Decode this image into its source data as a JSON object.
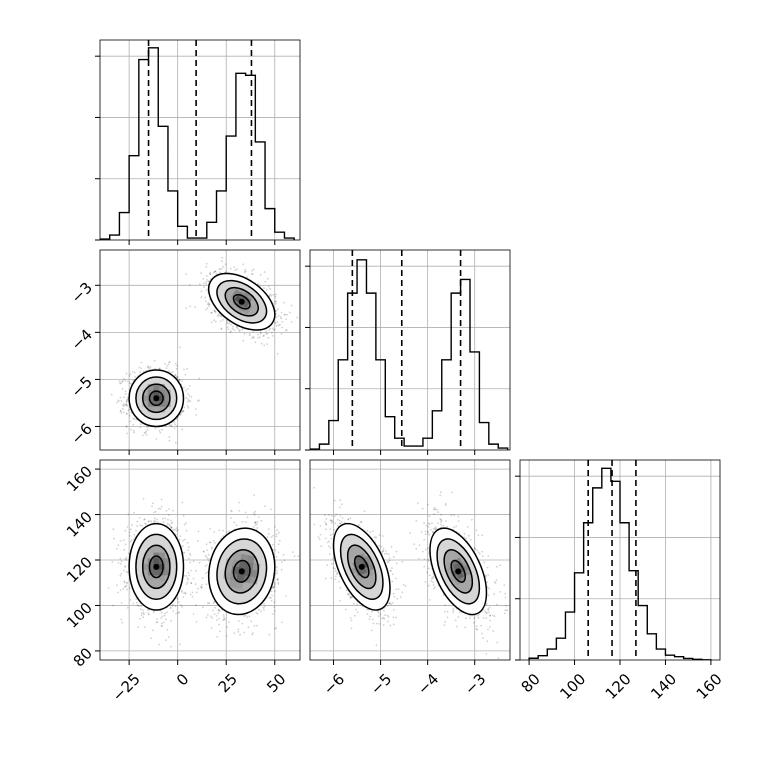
{
  "chart_data": {
    "type": "corner",
    "grid": true,
    "colors": {
      "line": "#000000",
      "grid": "#b0b0b0",
      "density": "#000000",
      "background": "#ffffff"
    },
    "parameters": [
      {
        "range": [
          -40,
          63
        ],
        "ticks": [
          -25,
          0,
          25,
          50
        ],
        "tick_labels": [
          "−25",
          "0",
          "25",
          "50"
        ]
      },
      {
        "range": [
          -6.5,
          -2.25
        ],
        "ticks": [
          -6,
          -5,
          -4,
          -3
        ],
        "tick_labels": [
          "−6",
          "−5",
          "−4",
          "−3"
        ]
      },
      {
        "range": [
          76,
          164
        ],
        "ticks": [
          80,
          100,
          120,
          140,
          160
        ],
        "tick_labels": [
          "80",
          "100",
          "120",
          "140",
          "160"
        ]
      }
    ],
    "diagonal": [
      {
        "param": 0,
        "bin_edges": [
          -40,
          -35,
          -30,
          -25,
          -20,
          -15,
          -10,
          -5,
          0,
          5,
          10,
          15,
          20,
          25,
          30,
          35,
          40,
          45,
          50,
          55,
          60
        ],
        "counts": [
          0.5,
          2.5,
          14,
          43,
          92,
          98,
          58,
          25,
          7,
          1,
          1,
          9,
          25,
          53,
          85,
          84,
          50,
          16,
          4,
          1
        ],
        "ymax": 100,
        "quantiles": [
          -15,
          9.5,
          38
        ]
      },
      {
        "param": 1,
        "bin_edges": [
          -6.5,
          -6.3,
          -6.1,
          -5.9,
          -5.7,
          -5.5,
          -5.3,
          -5.1,
          -4.9,
          -4.7,
          -4.5,
          -4.3,
          -4.1,
          -3.9,
          -3.7,
          -3.5,
          -3.3,
          -3.1,
          -2.9,
          -2.7,
          -2.5,
          -2.3
        ],
        "counts": [
          0.5,
          3,
          15,
          46,
          80,
          97,
          80,
          46,
          17,
          6,
          2,
          2,
          6,
          20,
          46,
          80,
          87,
          50,
          14,
          3,
          1
        ],
        "ymax": 100,
        "quantiles": [
          -5.6,
          -4.55,
          -3.3
        ]
      },
      {
        "param": 2,
        "bin_edges": [
          80,
          84,
          88,
          92,
          96,
          100,
          104,
          108,
          112,
          116,
          120,
          124,
          128,
          132,
          136,
          140,
          144,
          148,
          152,
          156,
          160
        ],
        "counts": [
          0.8,
          2,
          5,
          10,
          22,
          40,
          63,
          79,
          88,
          82,
          63,
          41,
          25,
          12,
          5,
          2.2,
          1.5,
          0.7,
          0.3,
          0.1
        ],
        "ymax": 90,
        "quantiles": [
          106,
          116.5,
          127
        ]
      }
    ],
    "pairs": [
      {
        "x_param": 0,
        "y_param": 1,
        "clusters": [
          {
            "mean": [
              -11,
              -5.4
            ],
            "sd": [
              7,
              0.3
            ],
            "corr": 0.0,
            "n": 1200
          },
          {
            "mean": [
              33,
              -3.35
            ],
            "sd": [
              8.5,
              0.3
            ],
            "corr": -0.45,
            "n": 1200
          }
        ]
      },
      {
        "x_param": 0,
        "y_param": 2,
        "clusters": [
          {
            "mean": [
              -11,
              117
            ],
            "sd": [
              7,
              9.5
            ],
            "corr": 0.0,
            "n": 1200
          },
          {
            "mean": [
              33,
              115
            ],
            "sd": [
              8.5,
              9.5
            ],
            "corr": 0.1,
            "n": 1200
          }
        ]
      },
      {
        "x_param": 1,
        "y_param": 2,
        "clusters": [
          {
            "mean": [
              -5.4,
              117
            ],
            "sd": [
              0.3,
              9.5
            ],
            "corr": -0.5,
            "n": 1200
          },
          {
            "mean": [
              -3.35,
              115
            ],
            "sd": [
              0.3,
              9.5
            ],
            "corr": -0.5,
            "n": 1200
          }
        ]
      }
    ],
    "contour_levels_sigma": [
      0.5,
      1.0,
      1.5,
      2.0
    ]
  }
}
